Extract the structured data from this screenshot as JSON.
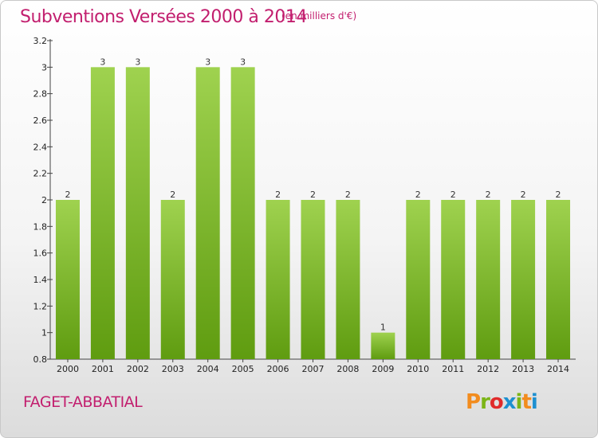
{
  "header": {
    "title": "Subventions Versées 2000 à 2014",
    "unit": "(en milliers d'€)"
  },
  "footer": {
    "commune": "FAGET-ABBATIAL",
    "logo_text": "Proxiti",
    "logo_colors": [
      "#f28c1e",
      "#7cb518",
      "#e02b2b",
      "#1e90d0",
      "#7cb518",
      "#f28c1e",
      "#1e90d0"
    ]
  },
  "colors": {
    "bar_top": "#9fd24f",
    "bar_bottom": "#5f9c10",
    "title": "#c21e6e"
  },
  "chart_data": {
    "type": "bar",
    "title": "Subventions Versées 2000 à 2014",
    "categories": [
      "2000",
      "2001",
      "2002",
      "2003",
      "2004",
      "2005",
      "2006",
      "2007",
      "2008",
      "2009",
      "2010",
      "2011",
      "2012",
      "2013",
      "2014"
    ],
    "values": [
      2,
      3,
      3,
      2,
      3,
      3,
      2,
      2,
      2,
      1,
      2,
      2,
      2,
      2,
      2
    ],
    "data_labels": [
      "2",
      "3",
      "3",
      "2",
      "3",
      "3",
      "2",
      "2",
      "2",
      "1",
      "2",
      "2",
      "2",
      "2",
      "2"
    ],
    "ylim": [
      0.8,
      3.2
    ],
    "yticks": [
      0.8,
      1,
      1.2,
      1.4,
      1.6,
      1.8,
      2,
      2.2,
      2.4,
      2.6,
      2.8,
      3,
      3.2
    ],
    "ytick_labels": [
      "0.8",
      "1",
      "1.2",
      "1.4",
      "1.6",
      "1.8",
      "2",
      "2.2",
      "2.4",
      "2.6",
      "2.8",
      "3",
      "3.2"
    ],
    "xlabel": "",
    "ylabel": "",
    "grid": false,
    "legend": "none"
  }
}
